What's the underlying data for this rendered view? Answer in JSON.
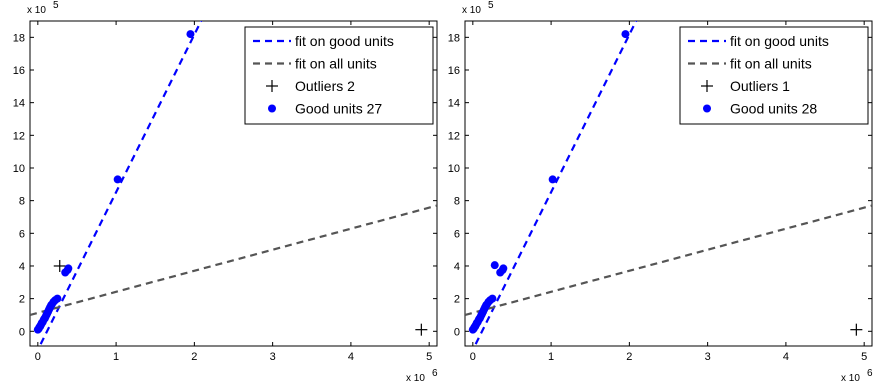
{
  "chart_data": [
    {
      "type": "scatter",
      "title": "",
      "xlabel": "",
      "ylabel": "",
      "x_multiplier_label": "x 10",
      "x_multiplier_exp": "6",
      "y_multiplier_label": "x 10",
      "y_multiplier_exp": "5",
      "xlim": [
        -0.1,
        5.1
      ],
      "ylim": [
        -0.9,
        19
      ],
      "xticks": [
        "0",
        "1",
        "2",
        "3",
        "4",
        "5"
      ],
      "yticks": [
        "0",
        "2",
        "4",
        "6",
        "8",
        "10",
        "12",
        "14",
        "16",
        "18"
      ],
      "legend_position": "top-right",
      "colors": {
        "good": "#0000ff",
        "all": "#555555",
        "outlier": "#000000"
      },
      "series": [
        {
          "name": "fit on good units",
          "kind": "line",
          "style": "dashed",
          "color": "#0000ff",
          "x": [
            -0.1,
            2.2
          ],
          "y": [
            -2.1,
            20.1
          ]
        },
        {
          "name": "fit on all units",
          "kind": "line",
          "style": "dashed",
          "color": "#555555",
          "x": [
            -0.1,
            5.1
          ],
          "y": [
            1.0,
            7.7
          ]
        },
        {
          "name": "Outliers 2",
          "kind": "marker",
          "marker": "+",
          "color": "#000000",
          "x": [
            0.28,
            4.9
          ],
          "y": [
            4.0,
            0.1
          ]
        },
        {
          "name": "Good units 27",
          "kind": "marker",
          "marker": "o",
          "color": "#0000ff",
          "x": [
            0.0,
            0.01,
            0.02,
            0.03,
            0.04,
            0.05,
            0.06,
            0.07,
            0.08,
            0.09,
            0.1,
            0.11,
            0.12,
            0.13,
            0.14,
            0.15,
            0.16,
            0.17,
            0.18,
            0.2,
            0.22,
            0.25,
            0.35,
            0.38,
            0.39,
            1.02,
            1.95
          ],
          "y": [
            0.1,
            0.15,
            0.25,
            0.3,
            0.4,
            0.5,
            0.55,
            0.65,
            0.75,
            0.8,
            0.9,
            1.0,
            1.1,
            1.2,
            1.3,
            1.4,
            1.5,
            1.6,
            1.65,
            1.8,
            1.9,
            2.0,
            3.6,
            3.75,
            3.85,
            9.3,
            18.2
          ]
        }
      ]
    },
    {
      "type": "scatter",
      "title": "",
      "xlabel": "",
      "ylabel": "",
      "x_multiplier_label": "x 10",
      "x_multiplier_exp": "6",
      "y_multiplier_label": "x 10",
      "y_multiplier_exp": "5",
      "xlim": [
        -0.1,
        5.1
      ],
      "ylim": [
        -0.9,
        19
      ],
      "xticks": [
        "0",
        "1",
        "2",
        "3",
        "4",
        "5"
      ],
      "yticks": [
        "0",
        "2",
        "4",
        "6",
        "8",
        "10",
        "12",
        "14",
        "16",
        "18"
      ],
      "legend_position": "top-right",
      "colors": {
        "good": "#0000ff",
        "all": "#555555",
        "outlier": "#000000"
      },
      "series": [
        {
          "name": "fit on good units",
          "kind": "line",
          "style": "dashed",
          "color": "#0000ff",
          "x": [
            -0.1,
            2.2
          ],
          "y": [
            -2.1,
            20.1
          ]
        },
        {
          "name": "fit on all units",
          "kind": "line",
          "style": "dashed",
          "color": "#555555",
          "x": [
            -0.1,
            5.1
          ],
          "y": [
            1.0,
            7.7
          ]
        },
        {
          "name": "Outliers 1",
          "kind": "marker",
          "marker": "+",
          "color": "#000000",
          "x": [
            4.9
          ],
          "y": [
            0.1
          ]
        },
        {
          "name": "Good units 28",
          "kind": "marker",
          "marker": "o",
          "color": "#0000ff",
          "x": [
            0.0,
            0.01,
            0.02,
            0.03,
            0.04,
            0.05,
            0.06,
            0.07,
            0.08,
            0.09,
            0.1,
            0.11,
            0.12,
            0.13,
            0.14,
            0.15,
            0.16,
            0.17,
            0.18,
            0.2,
            0.22,
            0.25,
            0.28,
            0.35,
            0.38,
            0.39,
            1.02,
            1.95
          ],
          "y": [
            0.1,
            0.15,
            0.25,
            0.3,
            0.4,
            0.5,
            0.55,
            0.65,
            0.75,
            0.8,
            0.9,
            1.0,
            1.1,
            1.2,
            1.3,
            1.4,
            1.5,
            1.6,
            1.65,
            1.8,
            1.9,
            2.0,
            4.05,
            3.6,
            3.75,
            3.85,
            9.3,
            18.2
          ]
        }
      ]
    }
  ]
}
